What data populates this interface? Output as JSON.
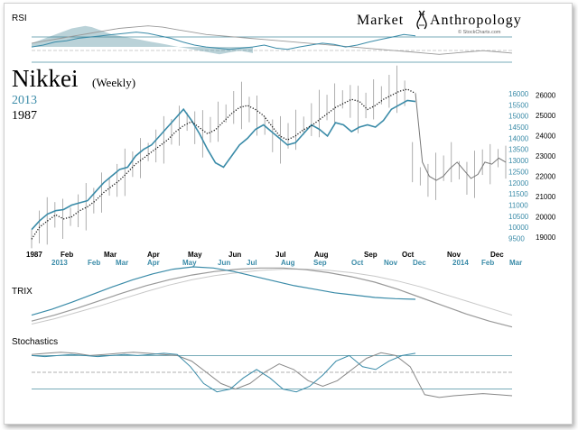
{
  "brand": {
    "name_part1": "Market",
    "name_part2": "Anthropology",
    "credit": "© StockCharts.com"
  },
  "title": {
    "main": "Nikkei",
    "sub": "(Weekly)",
    "legend_2013": "2013",
    "legend_1987": "1987"
  },
  "colors": {
    "series_2013": "#3a8ba8",
    "series_1987": "#111111",
    "axis_line": "#4a8fa0",
    "trix_grey": "#999999",
    "trix_light": "#c8c8c8"
  },
  "panels": {
    "rsi_label": "RSI",
    "trix_label": "TRIX",
    "stoch_label": "Stochastics"
  },
  "chart_data": {
    "type": "line",
    "title": "Nikkei (Weekly)",
    "axis_right_2013": {
      "ticks": [
        9500,
        10000,
        10500,
        11000,
        11500,
        12000,
        12500,
        13000,
        13500,
        14000,
        14500,
        15000,
        15500,
        16000
      ],
      "range": [
        9200,
        16200
      ]
    },
    "axis_right_1987": {
      "ticks": [
        19000,
        20000,
        21000,
        22000,
        23000,
        24000,
        25000,
        26000
      ],
      "range": [
        18600,
        26300
      ]
    },
    "x_labels_1987": [
      "1987",
      "Feb",
      "Mar",
      "Apr",
      "May",
      "Jun",
      "Jul",
      "Aug",
      "Sep",
      "Oct",
      "Nov",
      "Dec"
    ],
    "x_labels_2013": [
      "2013",
      "Feb",
      "Mar",
      "Apr",
      "May",
      "Jun",
      "Jul",
      "Aug",
      "Sep",
      "Oct",
      "Nov",
      "Dec",
      "2014",
      "Feb",
      "Mar"
    ],
    "series": [
      {
        "name": "2013",
        "values": [
          9900,
          10300,
          10600,
          10750,
          10800,
          11000,
          11100,
          11200,
          11600,
          12000,
          12300,
          12600,
          12700,
          13200,
          13500,
          13700,
          14100,
          14500,
          14900,
          15300,
          14800,
          14200,
          13500,
          12900,
          12700,
          13200,
          13700,
          14000,
          14400,
          14600,
          14300,
          14000,
          13700,
          13800,
          14200,
          14600,
          14400,
          14100,
          14700,
          14600,
          14300,
          14500,
          14600,
          14500,
          14800,
          15300,
          15500,
          15700,
          15650
        ]
      },
      {
        "name": "1987",
        "values": [
          18900,
          19500,
          19800,
          20100,
          19900,
          20000,
          20300,
          20500,
          20800,
          21200,
          21500,
          21800,
          22200,
          22600,
          22900,
          23200,
          23500,
          23800,
          24200,
          24500,
          24700,
          24400,
          24100,
          24300,
          24700,
          25100,
          25400,
          25500,
          25300,
          25000,
          24500,
          24000,
          23800,
          24000,
          24300,
          24500,
          24800,
          25100,
          25400,
          25600,
          25800,
          25700,
          25300,
          25500,
          25800,
          26000,
          26200,
          26300,
          26100,
          22700,
          22000,
          21800,
          22000,
          22400,
          22700,
          22300,
          21900,
          22100,
          22700,
          22600,
          22900,
          22700
        ]
      }
    ],
    "rsi": {
      "level_70_label": "",
      "series_2013": [
        52,
        55,
        60,
        62,
        66,
        68,
        70,
        72,
        74,
        76,
        74,
        70,
        66,
        60,
        55,
        52,
        50,
        48,
        50,
        52,
        55,
        50,
        48,
        52,
        55,
        58,
        56,
        52,
        55,
        60,
        64,
        68,
        72,
        70
      ],
      "series_1987": [
        58,
        62,
        66,
        70,
        74,
        78,
        82,
        84,
        86,
        84,
        80,
        76,
        72,
        70,
        68,
        66,
        64,
        62,
        60,
        58,
        56,
        54,
        52,
        50,
        48,
        46,
        44,
        42,
        40,
        42,
        44,
        46,
        44,
        42
      ]
    },
    "trix": {
      "series_2013": [
        -30,
        -20,
        -8,
        5,
        18,
        30,
        40,
        48,
        52,
        50,
        44,
        36,
        28,
        20,
        14,
        8,
        4,
        0,
        -2,
        -3
      ],
      "series_1987": [
        -40,
        -30,
        -18,
        -5,
        8,
        20,
        30,
        38,
        44,
        48,
        50,
        50,
        47,
        42,
        35,
        26,
        14,
        0,
        -14,
        -28,
        -40,
        -50
      ],
      "signal_1987": [
        -45,
        -36,
        -25,
        -14,
        -2,
        10,
        21,
        30,
        37,
        42,
        46,
        48,
        48,
        46,
        42,
        36,
        28,
        18,
        6,
        -6,
        -18,
        -30
      ]
    },
    "stochastics": {
      "series_2013": [
        80,
        78,
        80,
        82,
        80,
        78,
        80,
        82,
        80,
        82,
        84,
        82,
        60,
        30,
        15,
        20,
        40,
        55,
        40,
        20,
        15,
        25,
        45,
        70,
        80,
        60,
        55,
        70,
        80,
        84
      ],
      "series_1987": [
        82,
        84,
        86,
        84,
        80,
        82,
        84,
        86,
        84,
        82,
        80,
        70,
        50,
        30,
        20,
        30,
        50,
        65,
        55,
        35,
        25,
        35,
        55,
        75,
        85,
        80,
        60,
        10,
        5,
        8,
        10,
        12,
        10,
        8
      ],
      "levels": [
        80,
        50,
        20
      ]
    }
  }
}
